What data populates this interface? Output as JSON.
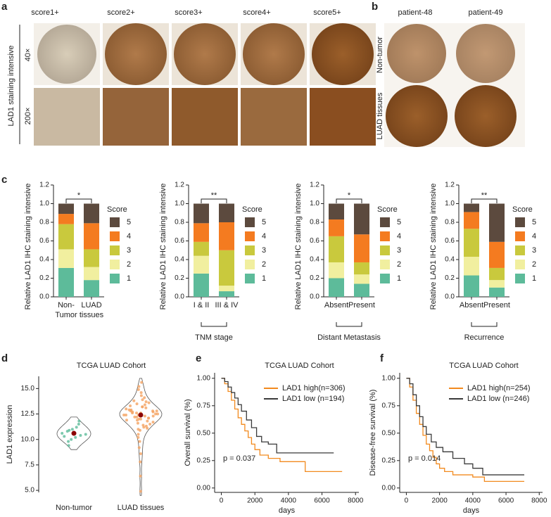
{
  "panel_labels": [
    "a",
    "b",
    "c",
    "d",
    "e",
    "f"
  ],
  "panel_a": {
    "columns": [
      "score1+",
      "score2+",
      "score3+",
      "score4+",
      "score5+"
    ],
    "row_title": "LAD1 staining intensive",
    "rows": [
      "40×",
      "200×"
    ]
  },
  "panel_b": {
    "columns": [
      "patient-48",
      "patient-49"
    ],
    "rows": [
      "Non-tumor",
      "LUAD tissues"
    ]
  },
  "chart_data": [
    {
      "type": "stacked_bar",
      "ylabel": "Relative LAD1 IHC staining intensive",
      "categories": [
        [
          "Non-",
          "Tumor"
        ],
        [
          "LUAD",
          "tissues"
        ]
      ],
      "significance": "*",
      "legend_title": "Score",
      "series": [
        {
          "name": "1",
          "color": "#5dbb9a",
          "values": [
            0.31,
            0.18
          ]
        },
        {
          "name": "2",
          "color": "#f1ef9f",
          "values": [
            0.2,
            0.14
          ]
        },
        {
          "name": "3",
          "color": "#c9c93d",
          "values": [
            0.27,
            0.19
          ]
        },
        {
          "name": "4",
          "color": "#f47b20",
          "values": [
            0.11,
            0.28
          ]
        },
        {
          "name": "5",
          "color": "#5c4a3e",
          "values": [
            0.11,
            0.21
          ]
        }
      ],
      "ylim": [
        0,
        1.2
      ],
      "yticks": [
        {
          "value": 0,
          "label": "0.0"
        },
        {
          "value": 0.2,
          "label": "0.2"
        },
        {
          "value": 0.4,
          "label": "0.4"
        },
        {
          "value": 0.6,
          "label": "0.6"
        },
        {
          "value": 0.8,
          "label": "0.8"
        },
        {
          "value": 1,
          "label": "1.0"
        },
        {
          "value": 1.2,
          "label": "1.2"
        }
      ]
    },
    {
      "type": "stacked_bar",
      "ylabel": "Relative LAD1 IHC staining intensive",
      "categories": [
        [
          "I & II"
        ],
        [
          "III & IV"
        ]
      ],
      "group_label": "TNM stage",
      "significance": "**",
      "legend_title": "Score",
      "series": [
        {
          "name": "1",
          "color": "#5dbb9a",
          "values": [
            0.25,
            0.06
          ]
        },
        {
          "name": "2",
          "color": "#f1ef9f",
          "values": [
            0.19,
            0.06
          ]
        },
        {
          "name": "3",
          "color": "#c9c93d",
          "values": [
            0.15,
            0.38
          ]
        },
        {
          "name": "4",
          "color": "#f47b20",
          "values": [
            0.2,
            0.3
          ]
        },
        {
          "name": "5",
          "color": "#5c4a3e",
          "values": [
            0.21,
            0.2
          ]
        }
      ],
      "ylim": [
        0,
        1.2
      ],
      "yticks": [
        {
          "value": 0,
          "label": "0.0"
        },
        {
          "value": 0.2,
          "label": "0.2"
        },
        {
          "value": 0.4,
          "label": "0.4"
        },
        {
          "value": 0.6,
          "label": "0.6"
        },
        {
          "value": 0.8,
          "label": "0.8"
        },
        {
          "value": 1,
          "label": "1.0"
        },
        {
          "value": 1.2,
          "label": "1.2"
        }
      ]
    },
    {
      "type": "stacked_bar",
      "ylabel": "Relative LAD1 IHC staining intensive",
      "categories": [
        [
          "Absent"
        ],
        [
          "Present"
        ]
      ],
      "group_label": "Distant Metastasis",
      "significance": "*",
      "legend_title": "Score",
      "series": [
        {
          "name": "1",
          "color": "#5dbb9a",
          "values": [
            0.2,
            0.14
          ]
        },
        {
          "name": "2",
          "color": "#f1ef9f",
          "values": [
            0.17,
            0.1
          ]
        },
        {
          "name": "3",
          "color": "#c9c93d",
          "values": [
            0.28,
            0.13
          ]
        },
        {
          "name": "4",
          "color": "#f47b20",
          "values": [
            0.18,
            0.3
          ]
        },
        {
          "name": "5",
          "color": "#5c4a3e",
          "values": [
            0.17,
            0.33
          ]
        }
      ],
      "ylim": [
        0,
        1.2
      ],
      "yticks": [
        {
          "value": 0,
          "label": "0.0"
        },
        {
          "value": 0.2,
          "label": "0.2"
        },
        {
          "value": 0.4,
          "label": "0.4"
        },
        {
          "value": 0.6,
          "label": "0.6"
        },
        {
          "value": 0.8,
          "label": "0.8"
        },
        {
          "value": 1,
          "label": "1.0"
        },
        {
          "value": 1.2,
          "label": "1.2"
        }
      ]
    },
    {
      "type": "stacked_bar",
      "ylabel": "Relative LAD1 IHC staining intensive",
      "categories": [
        [
          "Absent"
        ],
        [
          "Present"
        ]
      ],
      "group_label": "Recurrence",
      "significance": "**",
      "legend_title": "Score",
      "series": [
        {
          "name": "1",
          "color": "#5dbb9a",
          "values": [
            0.23,
            0.1
          ]
        },
        {
          "name": "2",
          "color": "#f1ef9f",
          "values": [
            0.2,
            0.08
          ]
        },
        {
          "name": "3",
          "color": "#c9c93d",
          "values": [
            0.3,
            0.13
          ]
        },
        {
          "name": "4",
          "color": "#f47b20",
          "values": [
            0.18,
            0.28
          ]
        },
        {
          "name": "5",
          "color": "#5c4a3e",
          "values": [
            0.09,
            0.41
          ]
        }
      ],
      "ylim": [
        0,
        1.2
      ],
      "yticks": [
        {
          "value": 0,
          "label": "0.0"
        },
        {
          "value": 0.2,
          "label": "0.2"
        },
        {
          "value": 0.4,
          "label": "0.4"
        },
        {
          "value": 0.6,
          "label": "0.6"
        },
        {
          "value": 0.8,
          "label": "0.8"
        },
        {
          "value": 1,
          "label": "1.0"
        },
        {
          "value": 1.2,
          "label": "1.2"
        }
      ]
    },
    {
      "type": "violin",
      "title": "TCGA LUAD Cohort",
      "ylabel": "LAD1 expression",
      "categories": [
        "Non-tumor",
        "LUAD tissues"
      ],
      "colors": [
        "#5dbb9a",
        "#f4a261"
      ],
      "mean_color": "#8b0000",
      "points": [
        [
          9.4,
          9.8,
          10.0,
          10.2,
          10.4,
          10.5,
          10.6,
          10.8,
          11.0,
          11.2,
          11.5,
          11.8,
          10.3,
          10.9
        ],
        [
          12.4,
          12.8,
          11.9,
          13.2,
          12.1,
          11.5,
          13.8,
          12.6,
          10.9,
          12.3,
          14.1,
          11.7,
          12.9,
          13.5,
          12.0,
          11.2,
          12.7,
          13.0,
          10.5,
          12.2,
          14.6,
          11.8,
          12.5,
          13.3,
          9.8,
          12.4,
          11.4,
          13.7,
          12.8,
          15.2,
          11.0,
          12.6,
          13.1,
          12.3,
          9.2,
          12.9,
          11.6,
          14.3,
          12.1,
          13.6,
          10.2,
          12.7,
          12.0,
          13.9,
          11.3,
          12.5,
          14.9,
          12.2,
          8.6,
          13.4,
          12.8,
          11.9,
          7.8,
          12.6,
          13.2,
          15.6,
          11.1,
          12.4,
          6.4,
          4.9
        ]
      ],
      "means": [
        10.6,
        12.4
      ],
      "ylim": [
        4.8,
        16.2
      ],
      "yticks": [
        {
          "value": 5,
          "label": "5.0"
        },
        7.5,
        {
          "value": 10,
          "label": "10.0"
        },
        12.5,
        {
          "value": 15,
          "label": "15.0"
        }
      ]
    },
    {
      "type": "km",
      "title": "TCGA LUAD Cohort",
      "ylabel": "Overall survival (%)",
      "xlabel": "days",
      "annotation": "p = 0.037",
      "series": [
        {
          "name": "LAD1 high(n=306)",
          "color": "#f28a1e",
          "x": [
            0,
            200,
            400,
            600,
            800,
            1000,
            1200,
            1400,
            1600,
            1800,
            2000,
            2300,
            2800,
            3500,
            5000,
            7200
          ],
          "values": [
            1.0,
            0.95,
            0.88,
            0.8,
            0.72,
            0.64,
            0.58,
            0.52,
            0.46,
            0.4,
            0.35,
            0.3,
            0.27,
            0.24,
            0.15,
            0.15
          ]
        },
        {
          "name": "LAD1 low (n=194)",
          "color": "#3a3a3a",
          "x": [
            0,
            200,
            400,
            600,
            800,
            1000,
            1200,
            1500,
            1800,
            2100,
            2400,
            2800,
            3300,
            6700
          ],
          "values": [
            1.0,
            0.97,
            0.92,
            0.87,
            0.82,
            0.76,
            0.7,
            0.62,
            0.55,
            0.47,
            0.42,
            0.4,
            0.32,
            0.32
          ]
        }
      ],
      "xlim": [
        -400,
        8200
      ],
      "xticks": [
        0,
        2000,
        4000,
        6000,
        8000
      ],
      "ylim": [
        -0.04,
        1.05
      ],
      "yticks": [
        {
          "value": 0,
          "label": "0.00"
        },
        {
          "value": 0.25,
          "label": "0.25"
        },
        {
          "value": 0.5,
          "label": "0.50"
        },
        {
          "value": 0.75,
          "label": "0.75"
        },
        {
          "value": 1,
          "label": "1.00"
        }
      ]
    },
    {
      "type": "km",
      "title": "TCGA LUAD Cohort",
      "ylabel": "Disease-free survival (%)",
      "xlabel": "days",
      "annotation": "p = 0.014",
      "series": [
        {
          "name": "LAD1 high(n=254)",
          "color": "#f28a1e",
          "x": [
            0,
            200,
            400,
            600,
            800,
            1000,
            1200,
            1400,
            1600,
            1800,
            2000,
            2300,
            2800,
            4000,
            4700,
            7100
          ],
          "values": [
            1.0,
            0.92,
            0.8,
            0.68,
            0.58,
            0.48,
            0.4,
            0.34,
            0.28,
            0.22,
            0.18,
            0.15,
            0.12,
            0.1,
            0.06,
            0.06
          ]
        },
        {
          "name": "LAD1 low (n=246)",
          "color": "#3a3a3a",
          "x": [
            0,
            200,
            400,
            600,
            800,
            1000,
            1200,
            1500,
            1800,
            2200,
            2800,
            3500,
            4000,
            4600,
            7100
          ],
          "values": [
            1.0,
            0.95,
            0.85,
            0.75,
            0.65,
            0.56,
            0.49,
            0.42,
            0.37,
            0.33,
            0.27,
            0.22,
            0.18,
            0.12,
            0.12
          ]
        }
      ],
      "xlim": [
        -400,
        8200
      ],
      "xticks": [
        0,
        2000,
        4000,
        6000,
        8000
      ],
      "ylim": [
        -0.04,
        1.05
      ],
      "yticks": [
        {
          "value": 0,
          "label": "0.00"
        },
        {
          "value": 0.25,
          "label": "0.25"
        },
        {
          "value": 0.5,
          "label": "0.50"
        },
        {
          "value": 0.75,
          "label": "0.75"
        },
        {
          "value": 1,
          "label": "1.00"
        }
      ]
    }
  ]
}
